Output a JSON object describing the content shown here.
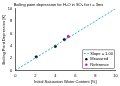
{
  "chart_data": {
    "type": "scatter",
    "title": "Boiling point depression for H₂O in SO₂ for t = 3ms",
    "x_label": "Initial Saturation Water Content [%]",
    "y_label": "Boiling Point Depression [K]",
    "xlim": [
      0,
      10
    ],
    "xticks": [
      0,
      2,
      4,
      6,
      8,
      10
    ],
    "ylim": [
      0,
      10
    ],
    "yticks": [
      0,
      2,
      4,
      6,
      8,
      10
    ],
    "grid": false,
    "legend": "lower right",
    "series": [
      {
        "name": "Slope = 1.00",
        "type": "line",
        "color": "#00aaaa",
        "line_style": "dashed",
        "x": [
          0,
          10
        ],
        "values": [
          0,
          10
        ]
      },
      {
        "name": "Measured",
        "type": "scatter",
        "color": "#000000",
        "marker": "circle",
        "x": [
          2.1,
          4.0,
          4.9
        ],
        "values": [
          2.2,
          3.9,
          5.0
        ]
      },
      {
        "name": "Reference",
        "type": "scatter",
        "color": "#cc00cc",
        "marker": "circle",
        "x": [
          5.3
        ],
        "values": [
          5.5
        ]
      }
    ]
  }
}
